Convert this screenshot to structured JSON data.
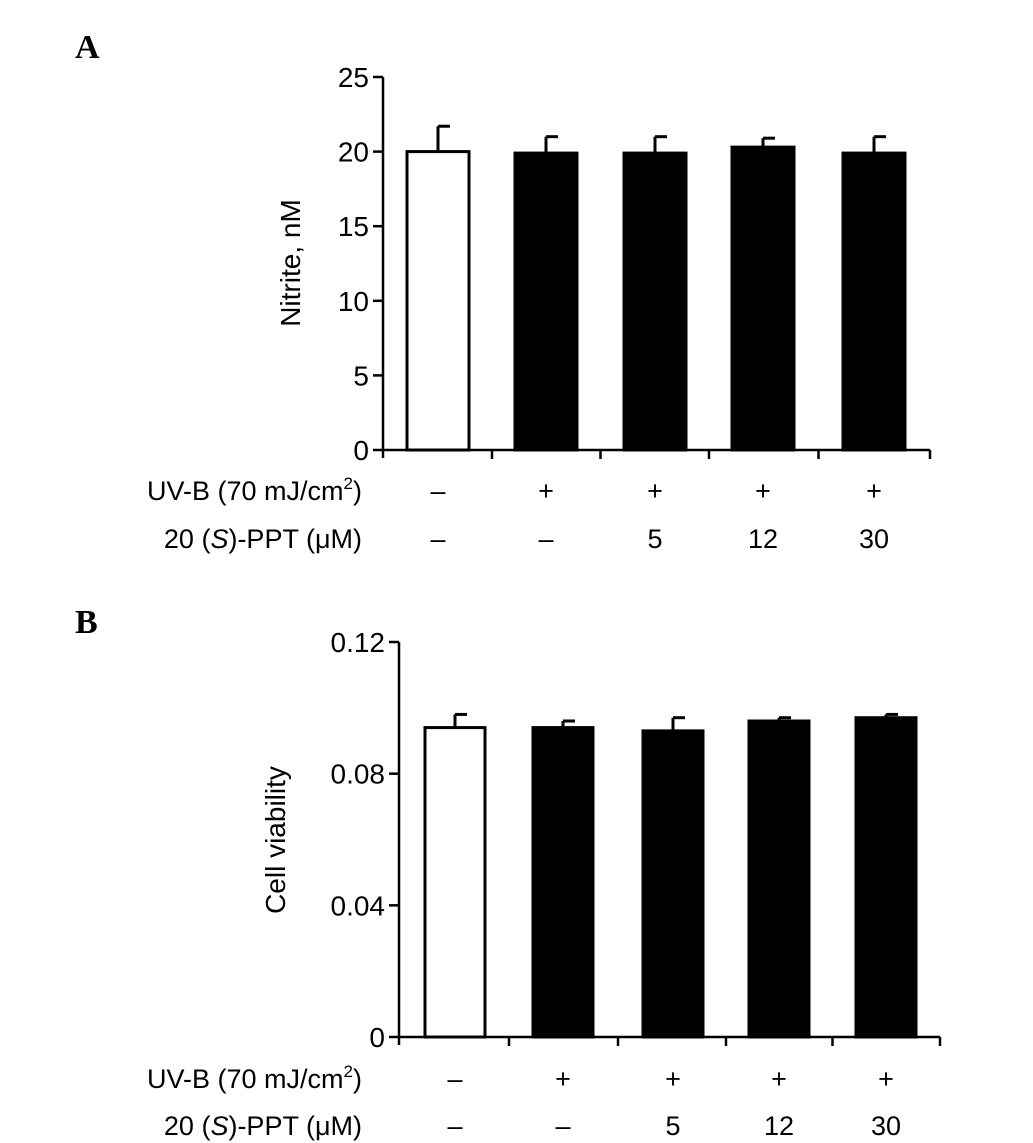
{
  "colors": {
    "control_bar": "#ffffff",
    "treated_bar": "#000000",
    "axis": "#000000"
  },
  "chart_data": [
    {
      "panel_label": "A",
      "type": "bar",
      "title": "",
      "xlabel": "",
      "ylabel": "Nitrite, nM",
      "ylim": [
        0,
        25
      ],
      "yticks": [
        "0",
        "5",
        "10",
        "15",
        "20",
        "25"
      ],
      "grid": false,
      "series": [
        {
          "values": [
            20.0,
            19.9,
            19.9,
            20.3,
            19.9
          ],
          "errors": [
            1.7,
            1.1,
            1.1,
            0.6,
            1.1
          ],
          "colors": [
            "#ffffff",
            "#000000",
            "#000000",
            "#000000",
            "#000000"
          ]
        }
      ],
      "conditions": [
        {
          "label": "UV-B (70 mJ/cm",
          "sup": "2",
          "label_end": ")",
          "values": [
            "–",
            "+",
            "+",
            "+",
            "+"
          ]
        },
        {
          "label_pre": "20 (",
          "label_italic": "S",
          "label_post": ")-PPT (μM)",
          "values": [
            "–",
            "–",
            "5",
            "12",
            "30"
          ]
        }
      ]
    },
    {
      "panel_label": "B",
      "type": "bar",
      "title": "",
      "xlabel": "",
      "ylabel": "Cell viability",
      "ylim": [
        0,
        0.12
      ],
      "yticks": [
        "0",
        "0.04",
        "0.08",
        "0.12"
      ],
      "grid": false,
      "series": [
        {
          "values": [
            0.094,
            0.094,
            0.093,
            0.096,
            0.097
          ],
          "errors": [
            0.004,
            0.002,
            0.004,
            0.001,
            0.001
          ],
          "colors": [
            "#ffffff",
            "#000000",
            "#000000",
            "#000000",
            "#000000"
          ]
        }
      ],
      "conditions": [
        {
          "label": "UV-B (70 mJ/cm",
          "sup": "2",
          "label_end": ")",
          "values": [
            "–",
            "+",
            "+",
            "+",
            "+"
          ]
        },
        {
          "label_pre": "20 (",
          "label_italic": "S",
          "label_post": ")-PPT (μM)",
          "values": [
            "–",
            "–",
            "5",
            "12",
            "30"
          ]
        }
      ]
    }
  ]
}
